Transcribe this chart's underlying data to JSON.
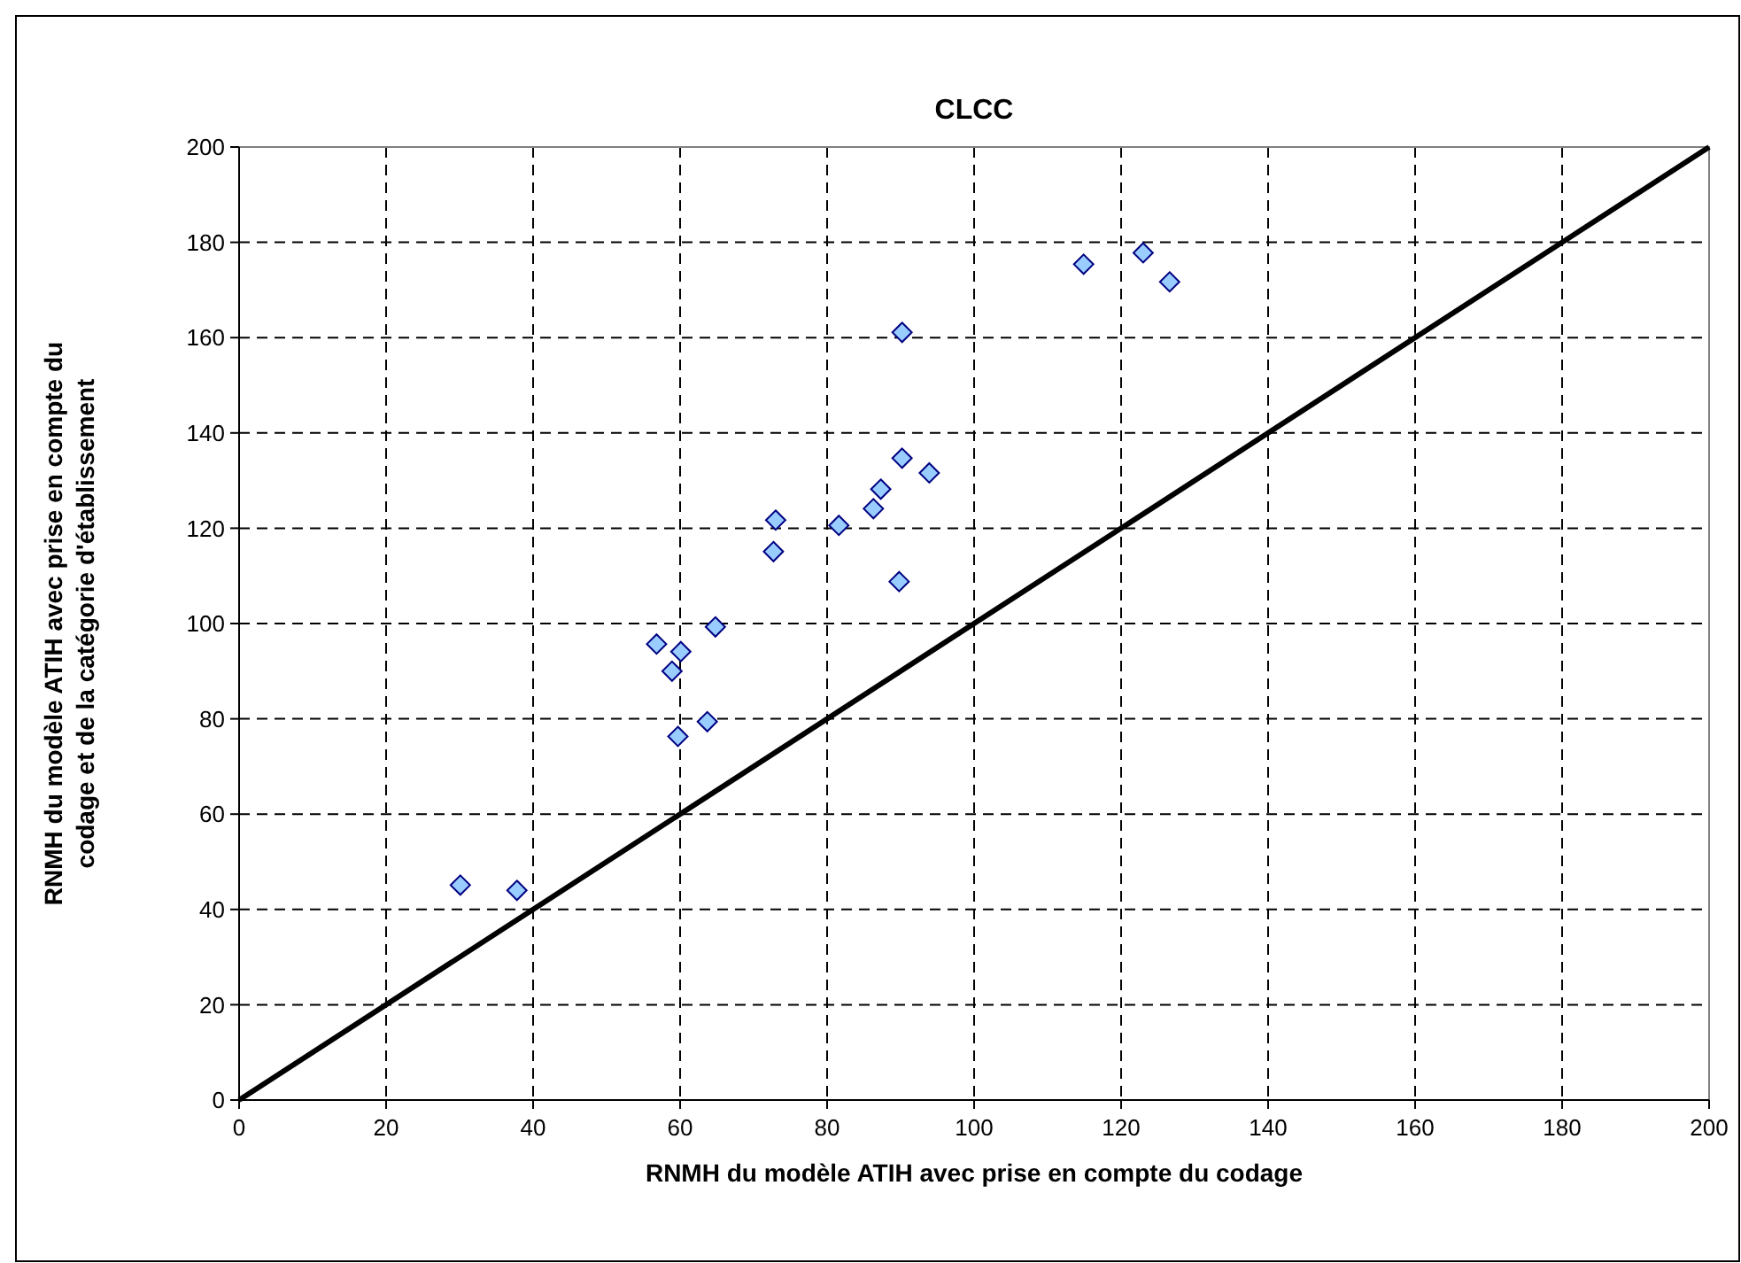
{
  "chart_data": {
    "type": "scatter",
    "title": "CLCC",
    "xlabel": "RNMH du modèle ATIH avec prise en compte du codage",
    "ylabel": "RNMH du modèle ATIH avec prise en compte du codage et de la catégorie d'établissement",
    "x": [
      30.1,
      37.8,
      56.8,
      60.1,
      58.9,
      64.8,
      59.7,
      63.7,
      73.0,
      72.7,
      81.6,
      86.3,
      87.3,
      90.2,
      93.9,
      89.8,
      90.2,
      114.9,
      123.0,
      126.6
    ],
    "series": [
      {
        "color": "#99ccff",
        "values": [
          45.1,
          44.0,
          95.7,
          94.1,
          90.0,
          99.3,
          76.3,
          79.4,
          121.7,
          115.1,
          120.6,
          124.1,
          128.2,
          134.7,
          131.6,
          108.8,
          161.1,
          175.4,
          177.8,
          171.7
        ]
      },
      {
        "type": "line",
        "color": "#000000",
        "x": [
          0,
          200
        ],
        "values": [
          0,
          200
        ],
        "marker": "none",
        "line_style": "solid"
      }
    ],
    "marker": "diamond",
    "xlim": [
      0,
      200
    ],
    "ylim": [
      0,
      200
    ],
    "xticks": [
      0,
      20,
      40,
      60,
      80,
      100,
      120,
      140,
      160,
      180,
      200
    ],
    "yticks": [
      0,
      20,
      40,
      60,
      80,
      100,
      120,
      140,
      160,
      180,
      200
    ],
    "grid": true
  }
}
